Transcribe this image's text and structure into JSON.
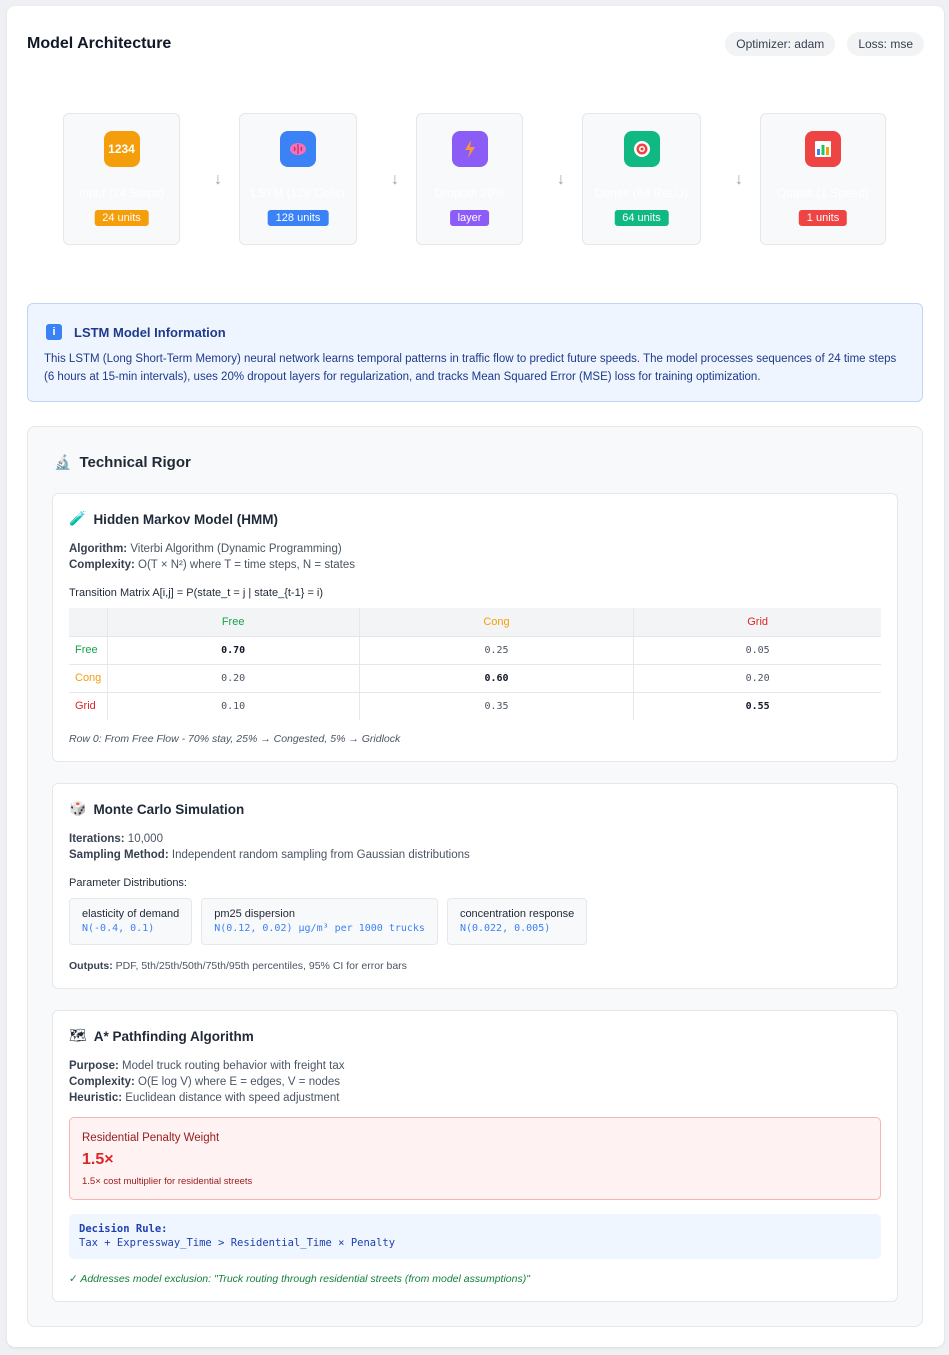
{
  "header": {
    "title": "Model Architecture",
    "optimizer_chip": "Optimizer: adam",
    "loss_chip": "Loss: mse"
  },
  "layers": [
    {
      "name": "Input (24 Steps)",
      "badge": "24 units",
      "icon": "input-numbers-icon",
      "color": "#f59e0b"
    },
    {
      "name": "LSTM (128 Cells)",
      "badge": "128 units",
      "icon": "brain-icon",
      "color": "#3b82f6"
    },
    {
      "name": "Dropout 20%",
      "badge": "layer",
      "icon": "lightning-icon",
      "color": "#8b5cf6"
    },
    {
      "name": "Dense (64 ReLU)",
      "badge": "64 units",
      "icon": "target-icon",
      "color": "#10b981"
    },
    {
      "name": "Output (1 Speed)",
      "badge": "1 units",
      "icon": "chart-icon",
      "color": "#ef4444"
    }
  ],
  "arrow_glyph": "↓",
  "info": {
    "icon_glyph": "i",
    "title": "LSTM Model Information",
    "text": "This LSTM (Long Short-Term Memory) neural network learns temporal patterns in traffic flow to predict future speeds. The model processes sequences of 24 time steps (6 hours at 15-min intervals), uses 20% dropout layers for regularization, and tracks Mean Squared Error (MSE) loss for training optimization."
  },
  "rigor": {
    "title": "Technical Rigor",
    "icon_glyph": "🔬",
    "hmm": {
      "icon_glyph": "🧪",
      "title": "Hidden Markov Model (HMM)",
      "algorithm_label": "Algorithm:",
      "algorithm": "Viterbi Algorithm (Dynamic Programming)",
      "complexity_label": "Complexity:",
      "complexity": "O(T × N²) where T = time steps, N = states",
      "matrix_caption": "Transition Matrix A[i,j] = P(state_t = j | state_{t-1} = i)",
      "columns": [
        "Free",
        "Cong",
        "Grid"
      ],
      "rows": [
        {
          "label": "Free",
          "values": [
            "0.70",
            "0.25",
            "0.05"
          ]
        },
        {
          "label": "Cong",
          "values": [
            "0.20",
            "0.60",
            "0.20"
          ]
        },
        {
          "label": "Grid",
          "values": [
            "0.10",
            "0.35",
            "0.55"
          ]
        }
      ],
      "state_colors": [
        "#16a34a",
        "#f59e0b",
        "#dc2626"
      ],
      "note": "Row 0: From Free Flow - 70% stay, 25% → Congested, 5% → Gridlock"
    },
    "monte_carlo": {
      "icon_glyph": "🎲",
      "title": "Monte Carlo Simulation",
      "iterations_label": "Iterations:",
      "iterations": "10,000",
      "sampling_label": "Sampling Method:",
      "sampling": "Independent random sampling from Gaussian distributions",
      "params_caption": "Parameter Distributions:",
      "params": [
        {
          "name": "elasticity of demand",
          "dist": "N(-0.4, 0.1)"
        },
        {
          "name": "pm25 dispersion",
          "dist": "N(0.12, 0.02) μg/m³ per 1000 trucks"
        },
        {
          "name": "concentration response",
          "dist": "N(0.022, 0.005)"
        }
      ],
      "outputs_label": "Outputs:",
      "outputs": "PDF, 5th/25th/50th/75th/95th percentiles, 95% CI for error bars"
    },
    "astar": {
      "icon_glyph": "🗺",
      "title": "A* Pathfinding Algorithm",
      "purpose_label": "Purpose:",
      "purpose": "Model truck routing behavior with freight tax",
      "complexity_label": "Complexity:",
      "complexity": "O(E log V) where E = edges, V = nodes",
      "heuristic_label": "Heuristic:",
      "heuristic": "Euclidean distance with speed adjustment",
      "penalty_title": "Residential Penalty Weight",
      "penalty_value": "1.5×",
      "penalty_desc": "1.5× cost multiplier for residential streets",
      "rule_label": "Decision Rule:",
      "rule_text": "Tax + Expressway_Time > Residential_Time × Penalty",
      "check_note": "✓ Addresses model exclusion: \"Truck routing through residential streets (from model assumptions)\""
    }
  }
}
